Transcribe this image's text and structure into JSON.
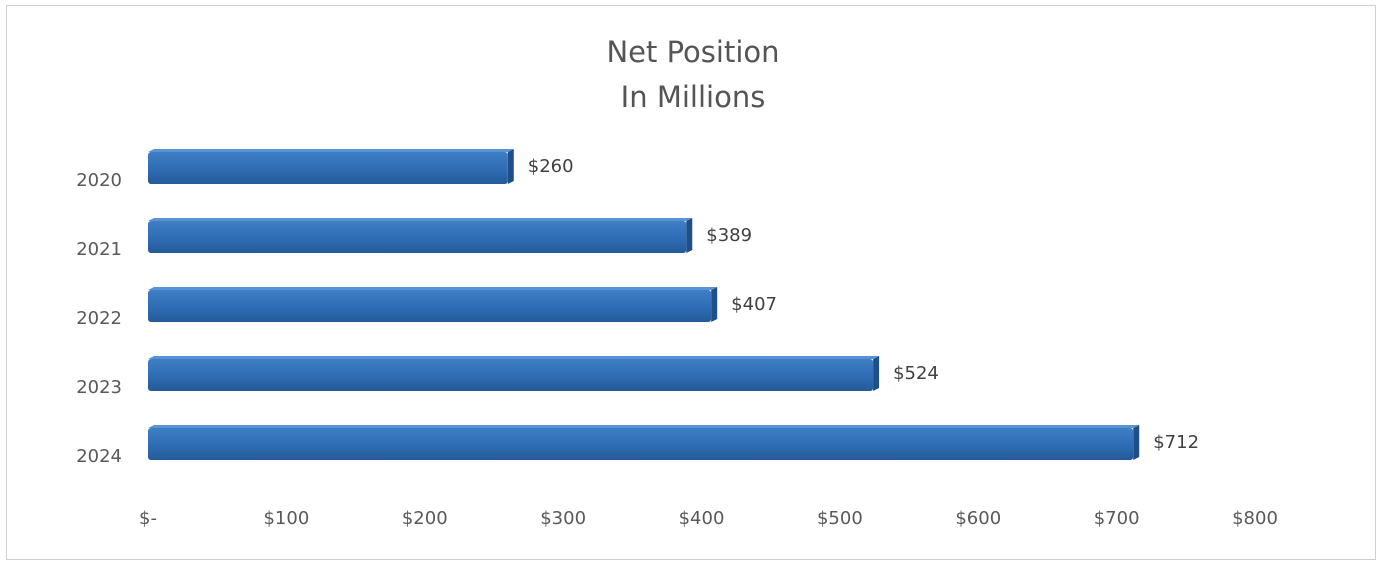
{
  "chart_data": {
    "type": "bar",
    "orientation": "horizontal",
    "title": "Net Position",
    "subtitle": "In Millions",
    "categories": [
      "2020",
      "2021",
      "2022",
      "2023",
      "2024"
    ],
    "values": [
      260,
      389,
      407,
      524,
      712
    ],
    "data_labels": [
      "$260",
      "$389",
      "$407",
      "$524",
      "$712"
    ],
    "xlim": [
      0,
      800
    ],
    "x_ticks": [
      0,
      100,
      200,
      300,
      400,
      500,
      600,
      700,
      800
    ],
    "x_tick_labels": [
      "$-",
      "$100",
      "$200",
      "$300",
      "$400",
      "$500",
      "$600",
      "$700",
      "$800"
    ],
    "bar_color": "#2e6db4",
    "grid": false,
    "legend": "none"
  }
}
